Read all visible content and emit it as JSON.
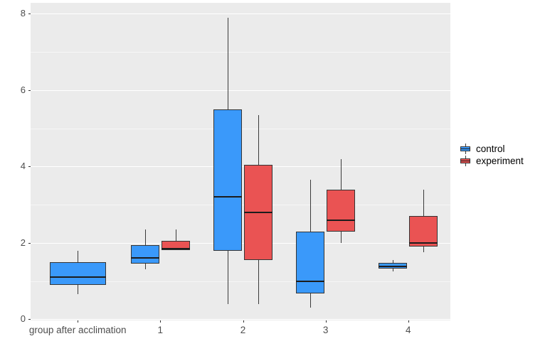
{
  "chart_data": {
    "type": "boxplot",
    "title": "",
    "xlabel": "",
    "ylabel": "",
    "categories": [
      "group after acclimation",
      "1",
      "2",
      "3",
      "4"
    ],
    "ylim": [
      0,
      8
    ],
    "yticks": [
      0,
      2,
      4,
      6,
      8
    ],
    "yminorticks": [
      1,
      3,
      5,
      7
    ],
    "grid": "on",
    "panel_background": "#EBEBEB",
    "major_grid_color": "#FFFFFF",
    "legend_position": "right",
    "legend": {
      "entries": [
        {
          "label": "control",
          "color": "#3A99FA"
        },
        {
          "label": "experiment",
          "color": "#EA5353"
        }
      ]
    },
    "series": [
      {
        "name": "control",
        "color": "#3A99FA",
        "boxes": [
          {
            "category": "group after acclimation",
            "min": 0.65,
            "q1": 0.9,
            "median": 1.1,
            "q3": 1.5,
            "max": 1.8
          },
          {
            "category": "1",
            "min": 1.3,
            "q1": 1.45,
            "median": 1.6,
            "q3": 1.95,
            "max": 2.35
          },
          {
            "category": "2",
            "min": 0.4,
            "q1": 1.8,
            "median": 3.2,
            "q3": 5.5,
            "max": 7.9
          },
          {
            "category": "3",
            "min": 0.3,
            "q1": 0.67,
            "median": 1.0,
            "q3": 2.3,
            "max": 3.65
          },
          {
            "category": "4",
            "min": 1.25,
            "q1": 1.32,
            "median": 1.38,
            "q3": 1.47,
            "max": 1.55
          }
        ]
      },
      {
        "name": "experiment",
        "color": "#EA5353",
        "boxes": [
          {
            "category": "1",
            "min": 1.8,
            "q1": 1.8,
            "median": 1.85,
            "q3": 2.05,
            "max": 2.35
          },
          {
            "category": "2",
            "min": 0.4,
            "q1": 1.55,
            "median": 2.8,
            "q3": 4.05,
            "max": 5.35
          },
          {
            "category": "3",
            "min": 2.0,
            "q1": 2.3,
            "median": 2.6,
            "q3": 3.4,
            "max": 4.2
          },
          {
            "category": "4",
            "min": 1.75,
            "q1": 1.9,
            "median": 2.0,
            "q3": 2.7,
            "max": 3.4
          }
        ]
      }
    ]
  }
}
